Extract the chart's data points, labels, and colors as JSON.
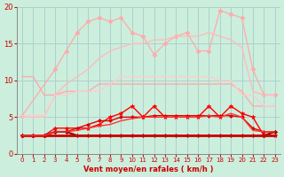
{
  "background_color": "#cceedd",
  "grid_color": "#aacccc",
  "xlabel": "Vent moyen/en rafales ( km/h )",
  "xlabel_color": "#cc0000",
  "tick_color": "#cc0000",
  "xlim": [
    -0.5,
    23.5
  ],
  "ylim": [
    0,
    20
  ],
  "xticks": [
    0,
    1,
    2,
    3,
    4,
    5,
    6,
    7,
    8,
    9,
    10,
    11,
    12,
    13,
    14,
    15,
    16,
    17,
    18,
    19,
    20,
    21,
    22,
    23
  ],
  "yticks": [
    0,
    5,
    10,
    15,
    20
  ],
  "series": [
    {
      "comment": "light pink upper jagged line with dots - highest series",
      "x": [
        0,
        3,
        4,
        5,
        6,
        7,
        8,
        9,
        10,
        11,
        12,
        13,
        14,
        15,
        16,
        17,
        18,
        19,
        20,
        21,
        22,
        23
      ],
      "y": [
        5.2,
        11.5,
        14.0,
        16.5,
        18.0,
        18.5,
        18.0,
        18.5,
        16.5,
        16.0,
        13.5,
        15.0,
        16.0,
        16.5,
        14.0,
        14.0,
        19.5,
        19.0,
        18.5,
        11.5,
        8.0,
        8.0
      ],
      "color": "#ffaaaa",
      "linewidth": 0.9,
      "marker": "D",
      "markersize": 2.5
    },
    {
      "comment": "light pink straight rising line - second highest",
      "x": [
        0,
        1,
        2,
        3,
        4,
        5,
        6,
        7,
        8,
        9,
        10,
        11,
        12,
        13,
        14,
        15,
        16,
        17,
        18,
        19,
        20,
        21,
        22,
        23
      ],
      "y": [
        5.0,
        5.0,
        5.0,
        8.0,
        9.5,
        10.5,
        11.5,
        13.0,
        14.0,
        14.5,
        15.0,
        15.0,
        15.5,
        15.5,
        16.0,
        16.0,
        16.0,
        16.5,
        16.0,
        15.5,
        14.5,
        8.5,
        8.0,
        8.0
      ],
      "color": "#ffbbbb",
      "linewidth": 1.0,
      "marker": null,
      "markersize": 0
    },
    {
      "comment": "light pink flat/slight decline - upper middle band",
      "x": [
        0,
        1,
        2,
        3,
        4,
        5,
        6,
        7,
        8,
        9,
        10,
        11,
        12,
        13,
        14,
        15,
        16,
        17,
        18,
        19,
        20,
        21,
        22,
        23
      ],
      "y": [
        10.5,
        10.5,
        8.0,
        8.0,
        8.5,
        8.5,
        8.5,
        9.5,
        9.5,
        9.5,
        9.5,
        9.5,
        9.5,
        9.5,
        9.5,
        9.5,
        9.5,
        9.5,
        9.5,
        9.5,
        8.5,
        6.5,
        6.5,
        6.5
      ],
      "color": "#ffaaaa",
      "linewidth": 1.0,
      "marker": null,
      "markersize": 0
    },
    {
      "comment": "light pink lower band - slight decline",
      "x": [
        0,
        1,
        2,
        3,
        4,
        5,
        6,
        7,
        8,
        9,
        10,
        11,
        12,
        13,
        14,
        15,
        16,
        17,
        18,
        19,
        20,
        21,
        22,
        23
      ],
      "y": [
        5.2,
        5.2,
        5.2,
        8.0,
        8.0,
        8.5,
        8.5,
        8.5,
        9.5,
        10.5,
        10.5,
        10.5,
        10.5,
        10.5,
        10.5,
        10.5,
        10.5,
        10.5,
        10.0,
        10.0,
        8.0,
        8.0,
        6.5,
        6.5
      ],
      "color": "#ffcccc",
      "linewidth": 1.0,
      "marker": null,
      "markersize": 0
    },
    {
      "comment": "bright red with star markers - zigzag middle",
      "x": [
        0,
        1,
        2,
        3,
        4,
        5,
        6,
        7,
        8,
        9,
        10,
        11,
        12,
        13,
        14,
        15,
        16,
        17,
        18,
        19,
        20,
        21,
        22,
        23
      ],
      "y": [
        2.5,
        2.5,
        2.5,
        3.5,
        3.5,
        3.5,
        3.5,
        4.0,
        5.0,
        5.5,
        6.5,
        5.0,
        6.5,
        5.0,
        5.0,
        5.0,
        5.0,
        6.5,
        5.0,
        6.5,
        5.5,
        5.0,
        2.5,
        2.5
      ],
      "color": "#ff0000",
      "linewidth": 1.0,
      "marker": "*",
      "markersize": 3.5
    },
    {
      "comment": "bright red rising - second from bottom with markers",
      "x": [
        0,
        1,
        2,
        3,
        4,
        5,
        6,
        7,
        8,
        9,
        10,
        11,
        12,
        13,
        14,
        15,
        16,
        17,
        18,
        19,
        20,
        21,
        22,
        23
      ],
      "y": [
        2.5,
        2.5,
        2.5,
        3.0,
        3.0,
        3.5,
        4.0,
        4.5,
        4.5,
        5.0,
        5.0,
        5.0,
        5.2,
        5.2,
        5.2,
        5.2,
        5.2,
        5.2,
        5.2,
        5.2,
        5.0,
        3.5,
        3.0,
        3.0
      ],
      "color": "#dd0000",
      "linewidth": 1.0,
      "marker": "D",
      "markersize": 2.0
    },
    {
      "comment": "dark red - nearly flat bottom line with markers",
      "x": [
        0,
        1,
        2,
        3,
        4,
        5,
        6,
        7,
        8,
        9,
        10,
        11,
        12,
        13,
        14,
        15,
        16,
        17,
        18,
        19,
        20,
        21,
        22,
        23
      ],
      "y": [
        2.5,
        2.5,
        2.5,
        3.0,
        3.0,
        2.5,
        2.5,
        2.5,
        2.5,
        2.5,
        2.5,
        2.5,
        2.5,
        2.5,
        2.5,
        2.5,
        2.5,
        2.5,
        2.5,
        2.5,
        2.5,
        2.5,
        2.5,
        3.0
      ],
      "color": "#990000",
      "linewidth": 1.5,
      "marker": "D",
      "markersize": 2.0
    },
    {
      "comment": "bright red - very flat bottom",
      "x": [
        0,
        1,
        2,
        3,
        4,
        5,
        6,
        7,
        8,
        9,
        10,
        11,
        12,
        13,
        14,
        15,
        16,
        17,
        18,
        19,
        20,
        21,
        22,
        23
      ],
      "y": [
        2.5,
        2.5,
        2.5,
        2.5,
        2.5,
        2.5,
        2.5,
        2.5,
        2.5,
        2.5,
        2.5,
        2.5,
        2.5,
        2.5,
        2.5,
        2.5,
        2.5,
        2.5,
        2.5,
        2.5,
        2.5,
        2.5,
        2.5,
        2.5
      ],
      "color": "#cc0000",
      "linewidth": 2.0,
      "marker": null,
      "markersize": 0
    },
    {
      "comment": "medium red rising gently",
      "x": [
        0,
        1,
        2,
        3,
        4,
        5,
        6,
        7,
        8,
        9,
        10,
        11,
        12,
        13,
        14,
        15,
        16,
        17,
        18,
        19,
        20,
        21,
        22,
        23
      ],
      "y": [
        2.5,
        2.5,
        2.5,
        3.0,
        3.0,
        3.2,
        3.5,
        3.8,
        4.0,
        4.5,
        4.8,
        5.0,
        5.0,
        5.0,
        5.0,
        5.0,
        5.0,
        5.2,
        5.0,
        5.5,
        5.0,
        3.2,
        3.0,
        3.0
      ],
      "color": "#ff3333",
      "linewidth": 1.0,
      "marker": null,
      "markersize": 0
    }
  ]
}
